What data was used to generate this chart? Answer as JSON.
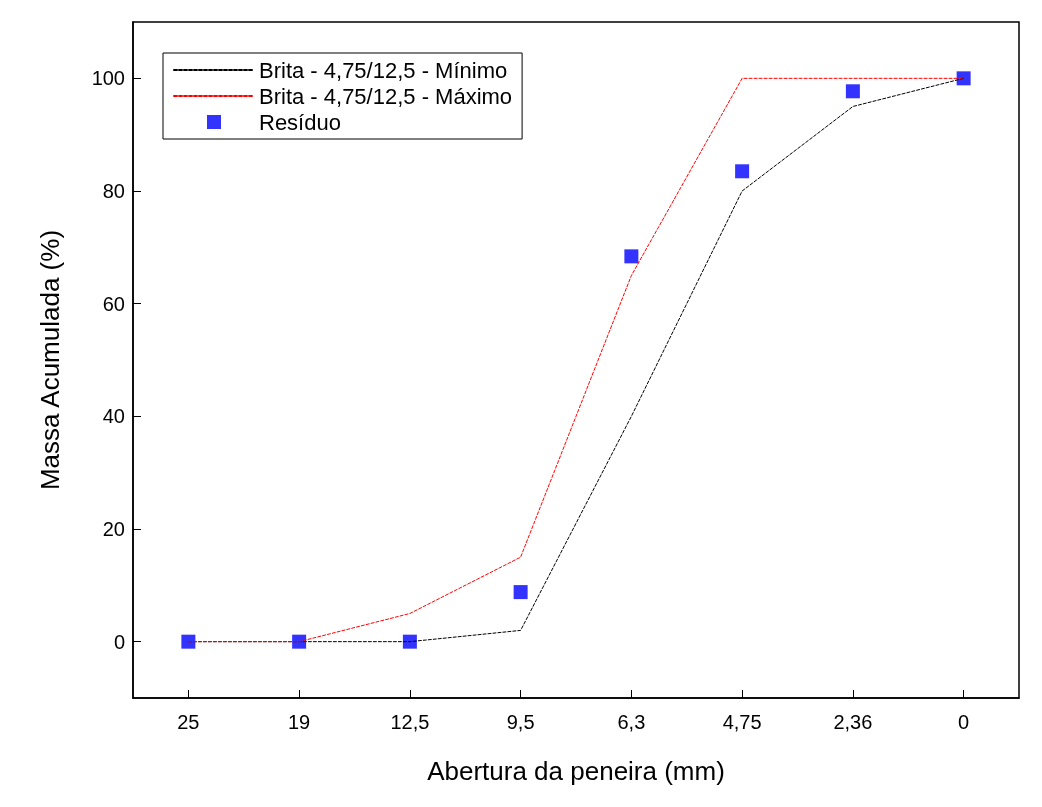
{
  "chart_data": {
    "type": "line",
    "xlabel": "Abertura da peneira (mm)",
    "ylabel": "Massa Acumulada (%)",
    "categories": [
      "25",
      "19",
      "12,5",
      "9,5",
      "6,3",
      "4,75",
      "2,36",
      "0"
    ],
    "series": [
      {
        "name": "Brita - 4,75/12,5 - Mínimo",
        "color": "#000000",
        "values": [
          0,
          0,
          0,
          2,
          40,
          80,
          95,
          100
        ],
        "marker": "none",
        "line_style": "dashed"
      },
      {
        "name": "Brita - 4,75/12,5 - Máximo",
        "color": "#ff0000",
        "values": [
          0,
          0,
          5,
          15,
          65,
          100,
          100,
          100
        ],
        "marker": "none",
        "line_style": "dashed"
      },
      {
        "name": "Resíduo",
        "type": "scatter",
        "color": "#0000ff",
        "values": [
          0,
          0,
          0,
          8.8,
          68.4,
          83.5,
          97.7,
          100
        ],
        "marker": "square"
      }
    ],
    "ylim": [
      -10,
      110
    ],
    "yticks": [
      0,
      20,
      40,
      60,
      80,
      100
    ],
    "grid": false,
    "legend": "top left"
  }
}
